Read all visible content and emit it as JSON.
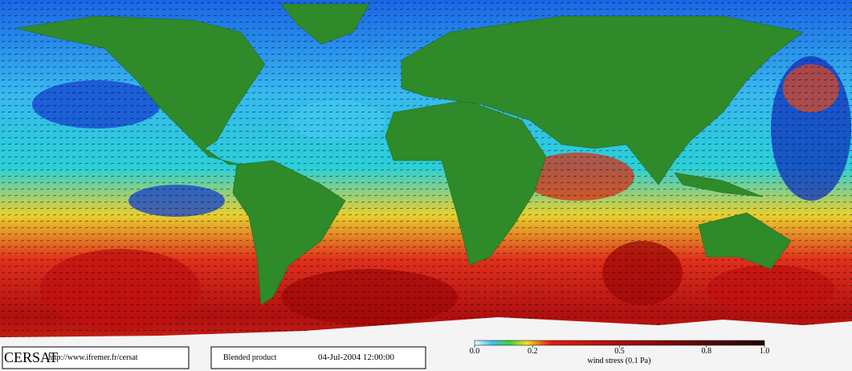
{
  "footer": {
    "logo": "CERSAT",
    "url": "http://www.ifremer.fr/cersat",
    "product": "Blended product",
    "date": "04-Jul-2004 12:00:00"
  },
  "colorbar": {
    "label": "wind stress (0.1 Pa)",
    "lim": [
      0,
      1
    ],
    "ticks": [
      {
        "value": 0,
        "label": "0.0"
      },
      0.2,
      0.5,
      0.8,
      {
        "value": 1,
        "label": "1.0"
      }
    ]
  }
}
